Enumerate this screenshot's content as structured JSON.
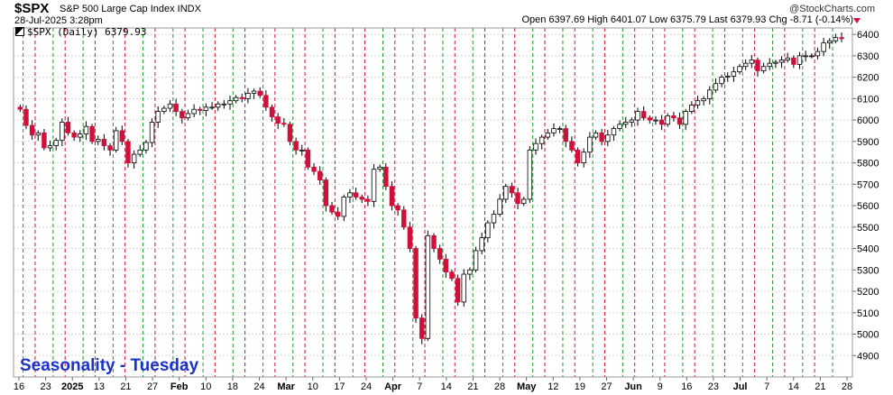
{
  "header": {
    "symbol": "$SPX",
    "name": "S&P 500 Large Cap Index  INDX",
    "date_time": "28-Jul-2025 3:28pm",
    "copyright": "@StockCharts.com",
    "quote": "Open 6397.69  High 6401.07  Low 6375.79  Last 6379.93  Chg -8.71 (-0.14%)"
  },
  "legend_label": "$SPX (Daily) 6379.93",
  "annotation": "Seasonality - Tuesday",
  "colors": {
    "up": "#ffffff",
    "down": "#d0103a",
    "outline": "#000000",
    "green_line": "#1f9a2a",
    "red_line": "#d0103a",
    "title": "#1a33cc"
  },
  "chart_data": {
    "type": "candlestick",
    "title": "$SPX",
    "ylim": [
      4800,
      6430
    ],
    "yticks": [
      4900,
      5000,
      5100,
      5200,
      5300,
      5400,
      5500,
      5600,
      5700,
      5800,
      5900,
      6000,
      6100,
      6200,
      6300,
      6400
    ],
    "xticks": [
      "16",
      "23",
      "2025",
      "13",
      "21",
      "27",
      "Feb",
      "10",
      "18",
      "24",
      "Mar",
      "10",
      "17",
      "24",
      "Apr",
      "7",
      "14",
      "21",
      "28",
      "May",
      "12",
      "19",
      "27",
      "Jun",
      "9",
      "16",
      "23",
      "Jul",
      "7",
      "14",
      "21",
      "28"
    ],
    "grid": true,
    "vertical_line_colors": "green = Monday, red = Wednesday (Tuesday bracketed)",
    "close_series": [
      6050,
      5975,
      5930,
      5940,
      5870,
      5880,
      5905,
      5990,
      5940,
      5920,
      5935,
      5970,
      5900,
      5910,
      5880,
      5860,
      5950,
      5900,
      5800,
      5840,
      5860,
      5895,
      5990,
      6040,
      6055,
      6075,
      6040,
      6010,
      6030,
      6050,
      6045,
      6060,
      6060,
      6075,
      6075,
      6090,
      6105,
      6100,
      6125,
      6135,
      6115,
      6060,
      6015,
      5985,
      5980,
      5900,
      5860,
      5860,
      5780,
      5760,
      5720,
      5600,
      5570,
      5550,
      5640,
      5660,
      5640,
      5630,
      5620,
      5770,
      5780,
      5690,
      5600,
      5580,
      5500,
      5400,
      5075,
      4980,
      5460,
      5400,
      5350,
      5290,
      5260,
      5150,
      5280,
      5300,
      5390,
      5450,
      5520,
      5560,
      5630,
      5690,
      5660,
      5610,
      5630,
      5860,
      5890,
      5920,
      5940,
      5960,
      5960,
      5900,
      5860,
      5800,
      5850,
      5920,
      5940,
      5900,
      5930,
      5960,
      5980,
      5990,
      6000,
      6040,
      6010,
      6000,
      6000,
      5980,
      6020,
      6010,
      5980,
      6040,
      6070,
      6090,
      6100,
      6140,
      6170,
      6200,
      6205,
      6225,
      6250,
      6265,
      6280,
      6230,
      6250,
      6265,
      6270,
      6280,
      6290,
      6260,
      6300,
      6300,
      6300,
      6320,
      6360,
      6370,
      6385,
      6380
    ]
  }
}
